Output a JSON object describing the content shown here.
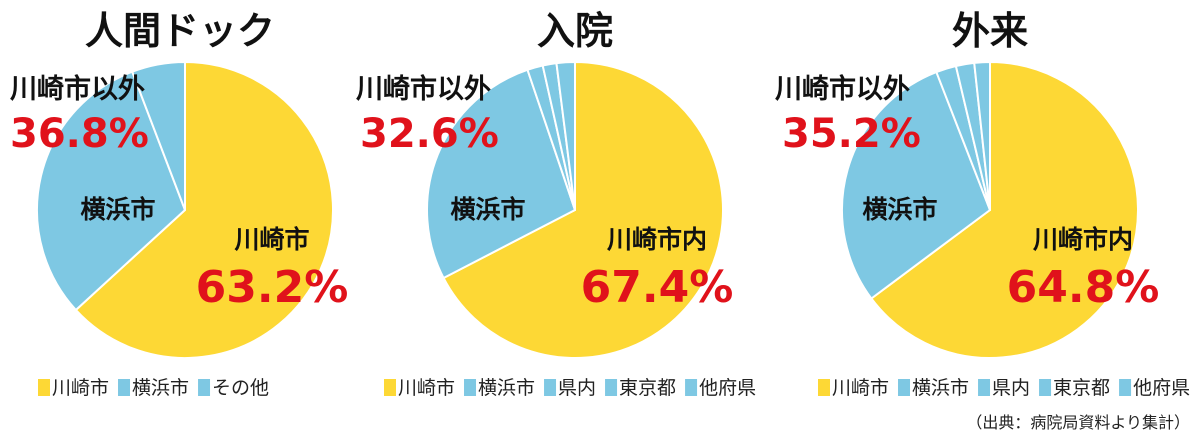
{
  "colors": {
    "yellow": "#fdd835",
    "blue": "#7ec8e3",
    "pct_red": "#e0121b",
    "slice_border": "#ffffff"
  },
  "chart_data": [
    {
      "type": "pie",
      "title": "人間ドック",
      "slices": [
        {
          "name": "川崎市",
          "value": 63.2,
          "color": "#fdd835"
        },
        {
          "name": "横浜市",
          "value": 31.0,
          "color": "#7ec8e3"
        },
        {
          "name": "その他",
          "value": 5.8,
          "color": "#7ec8e3"
        }
      ],
      "callouts": {
        "outside_label": "川崎市以外",
        "outside_pct": "36.8%",
        "inside_blue_label": "横浜市",
        "inside_yellow_label": "川崎市",
        "inside_yellow_pct": "63.2%"
      },
      "legend": [
        "川崎市",
        "横浜市",
        "その他"
      ]
    },
    {
      "type": "pie",
      "title": "入院",
      "slices": [
        {
          "name": "川崎市内",
          "value": 67.4,
          "color": "#fdd835"
        },
        {
          "name": "横浜市",
          "value": 27.4,
          "color": "#7ec8e3"
        },
        {
          "name": "県内",
          "value": 1.7,
          "color": "#7ec8e3"
        },
        {
          "name": "東京都",
          "value": 1.5,
          "color": "#7ec8e3"
        },
        {
          "name": "他府県",
          "value": 2.0,
          "color": "#7ec8e3"
        }
      ],
      "callouts": {
        "outside_label": "川崎市以外",
        "outside_pct": "32.6%",
        "inside_blue_label": "横浜市",
        "inside_yellow_label": "川崎市内",
        "inside_yellow_pct": "67.4%"
      },
      "legend": [
        "川崎市",
        "横浜市",
        "県内",
        "東京都",
        "他府県"
      ]
    },
    {
      "type": "pie",
      "title": "外来",
      "slices": [
        {
          "name": "川崎市内",
          "value": 64.8,
          "color": "#fdd835"
        },
        {
          "name": "横浜市",
          "value": 29.3,
          "color": "#7ec8e3"
        },
        {
          "name": "県内",
          "value": 2.2,
          "color": "#7ec8e3"
        },
        {
          "name": "東京都",
          "value": 2.0,
          "color": "#7ec8e3"
        },
        {
          "name": "他府県",
          "value": 1.7,
          "color": "#7ec8e3"
        }
      ],
      "callouts": {
        "outside_label": "川崎市以外",
        "outside_pct": "35.2%",
        "inside_blue_label": "横浜市",
        "inside_yellow_label": "川崎市内",
        "inside_yellow_pct": "64.8%"
      },
      "legend": [
        "川崎市",
        "横浜市",
        "県内",
        "東京都",
        "他府県"
      ]
    }
  ],
  "source_note": "（出典：病院局資料より集計）"
}
